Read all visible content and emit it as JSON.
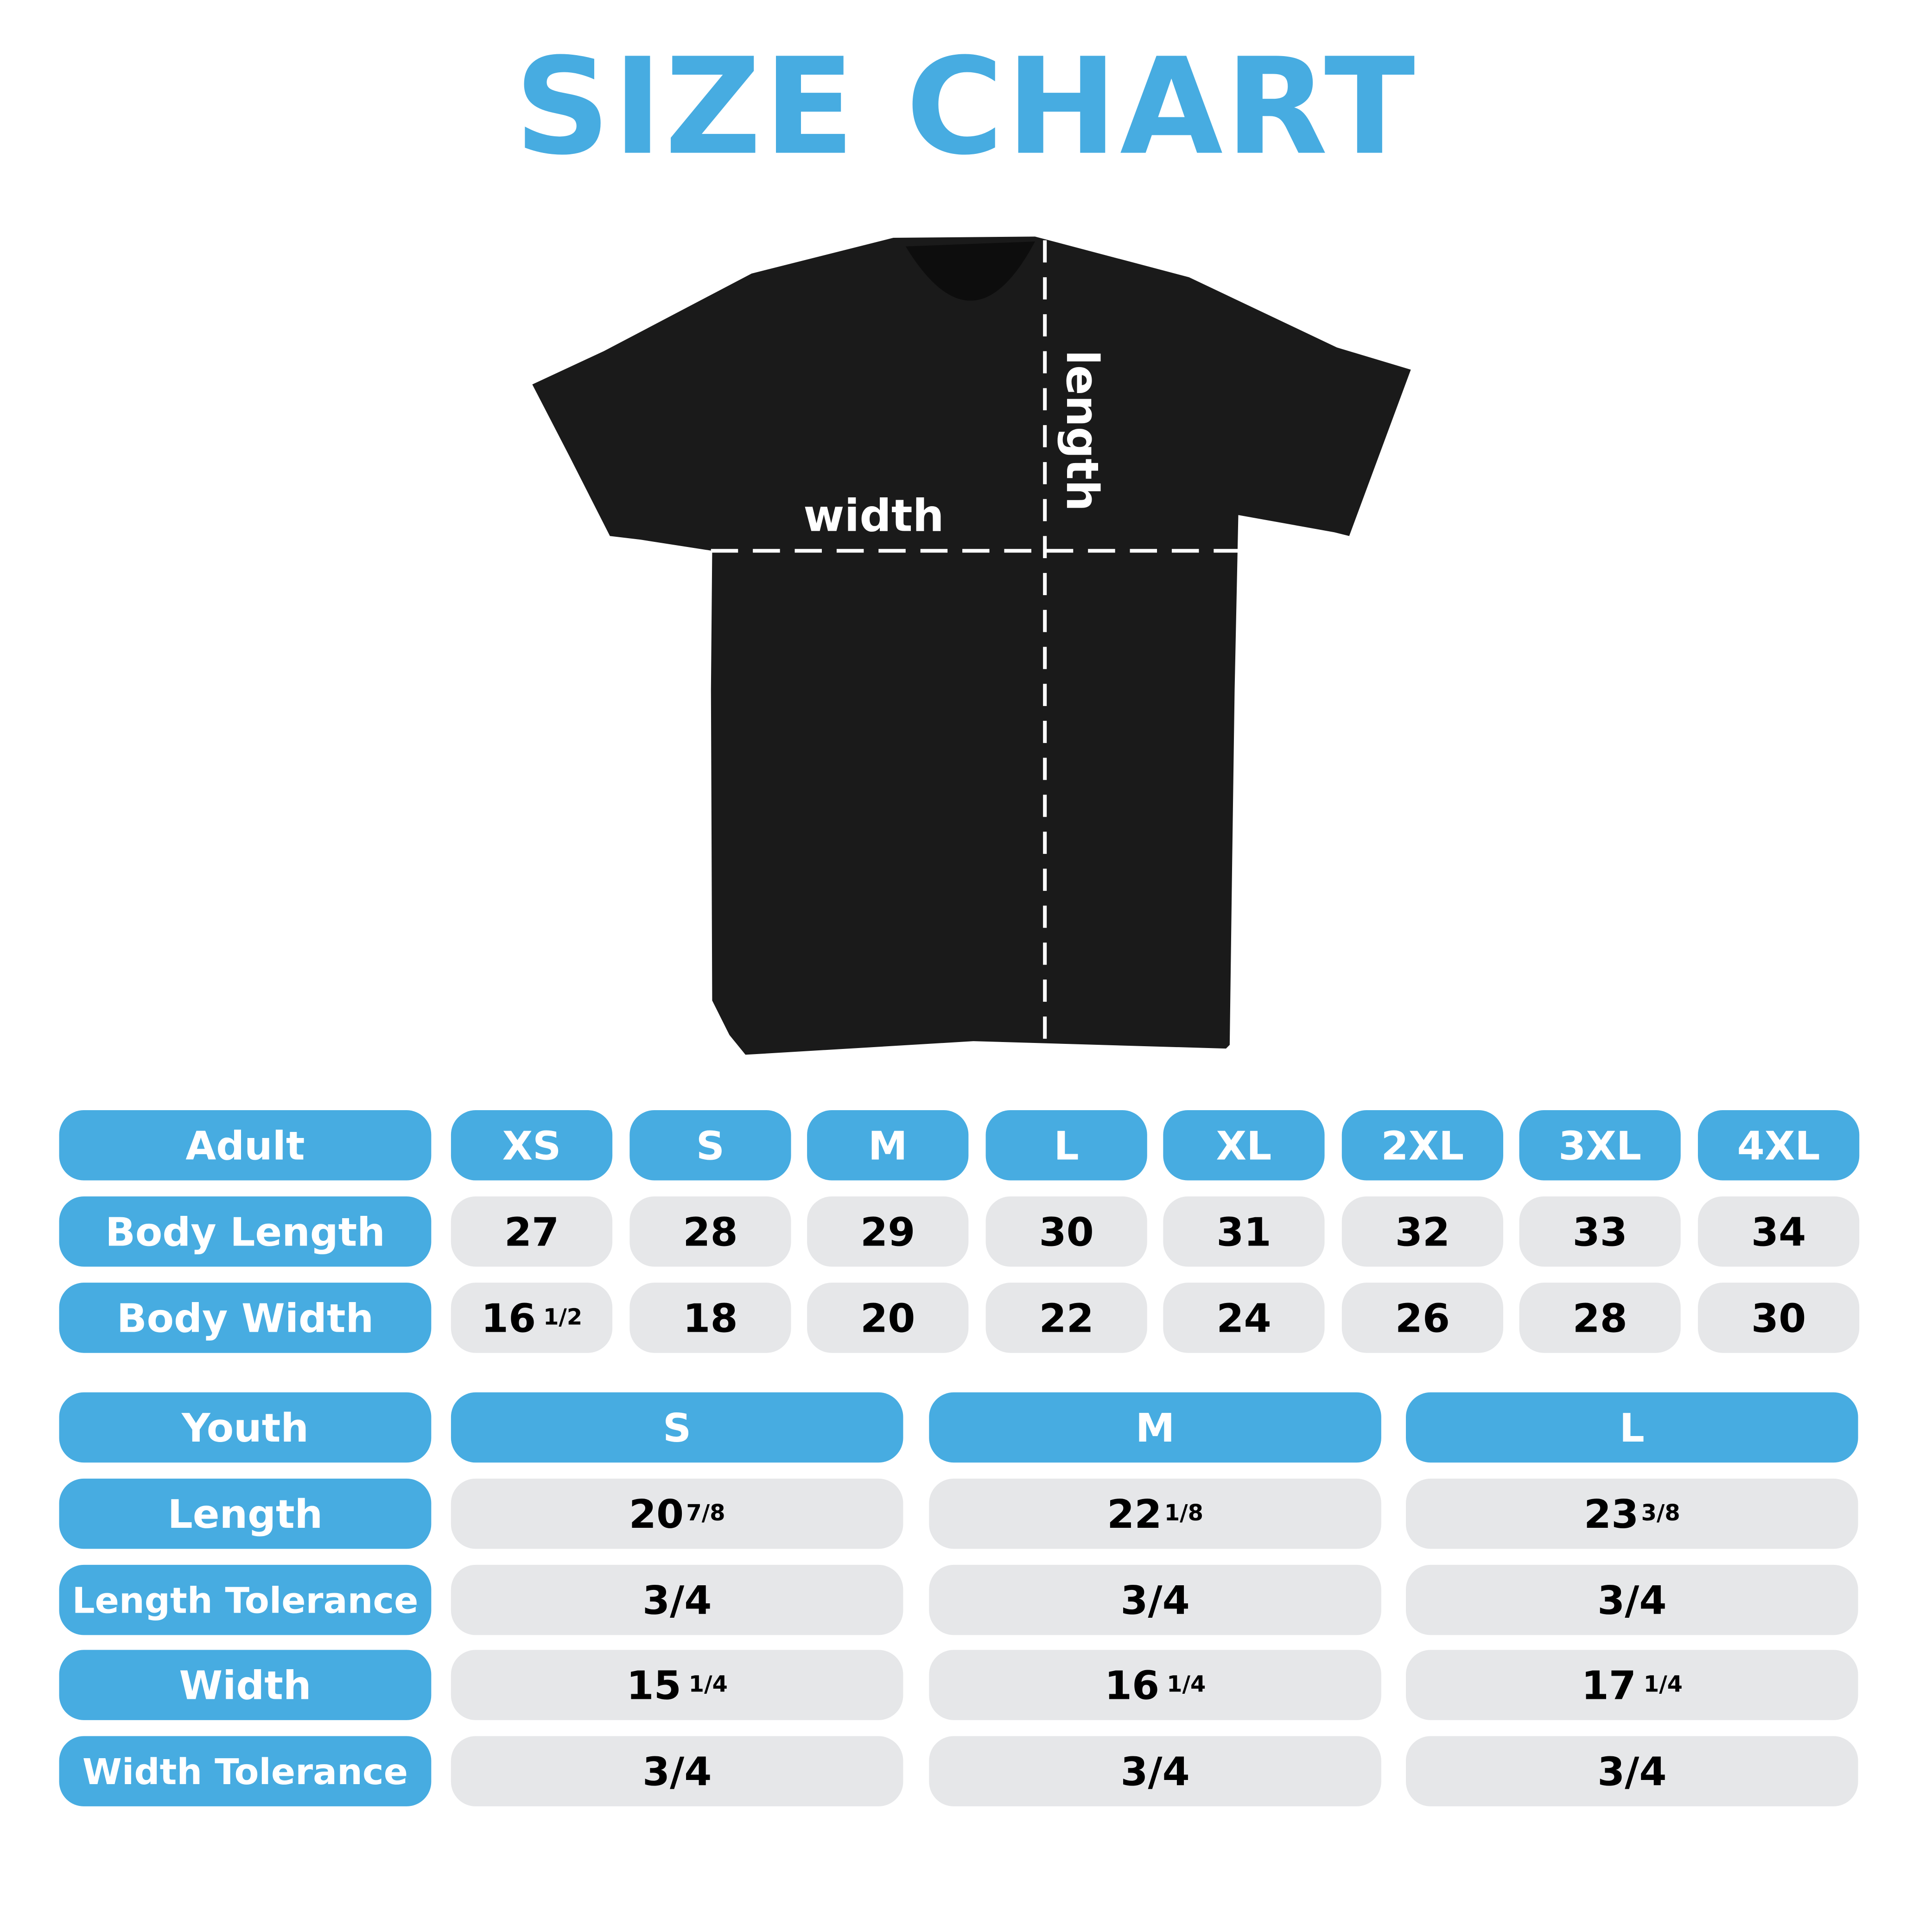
{
  "title": "SIZE CHART",
  "colors": {
    "accent": "#47ace1",
    "cell": "#e6e7e9",
    "shirt": "#1a1a1a"
  },
  "diagram": {
    "width_label": "width",
    "length_label": "length"
  },
  "adult": {
    "header": "Adult",
    "sizes": [
      "XS",
      "S",
      "M",
      "L",
      "XL",
      "2XL",
      "3XL",
      "4XL"
    ],
    "rows": [
      {
        "label": "Body Length",
        "values": [
          {
            "whole": "27"
          },
          {
            "whole": "28"
          },
          {
            "whole": "29"
          },
          {
            "whole": "30"
          },
          {
            "whole": "31"
          },
          {
            "whole": "32"
          },
          {
            "whole": "33"
          },
          {
            "whole": "34"
          }
        ]
      },
      {
        "label": "Body Width",
        "values": [
          {
            "whole": "16",
            "frac": "1/2"
          },
          {
            "whole": "18"
          },
          {
            "whole": "20"
          },
          {
            "whole": "22"
          },
          {
            "whole": "24"
          },
          {
            "whole": "26"
          },
          {
            "whole": "28"
          },
          {
            "whole": "30"
          }
        ]
      }
    ]
  },
  "youth": {
    "header": "Youth",
    "sizes": [
      "S",
      "M",
      "L"
    ],
    "rows": [
      {
        "label": "Length",
        "values": [
          {
            "whole": "20",
            "frac": "7/8"
          },
          {
            "whole": "22",
            "frac": "1/8"
          },
          {
            "whole": "23",
            "frac": "3/8"
          }
        ]
      },
      {
        "label": "Length Tolerance",
        "values": [
          {
            "whole": "3/4"
          },
          {
            "whole": "3/4"
          },
          {
            "whole": "3/4"
          }
        ]
      },
      {
        "label": "Width",
        "values": [
          {
            "whole": "15",
            "frac": "1/4"
          },
          {
            "whole": "16",
            "frac": "1/4"
          },
          {
            "whole": "17",
            "frac": "1/4"
          }
        ]
      },
      {
        "label": "Width Tolerance",
        "values": [
          {
            "whole": "3/4"
          },
          {
            "whole": "3/4"
          },
          {
            "whole": "3/4"
          }
        ]
      }
    ]
  }
}
